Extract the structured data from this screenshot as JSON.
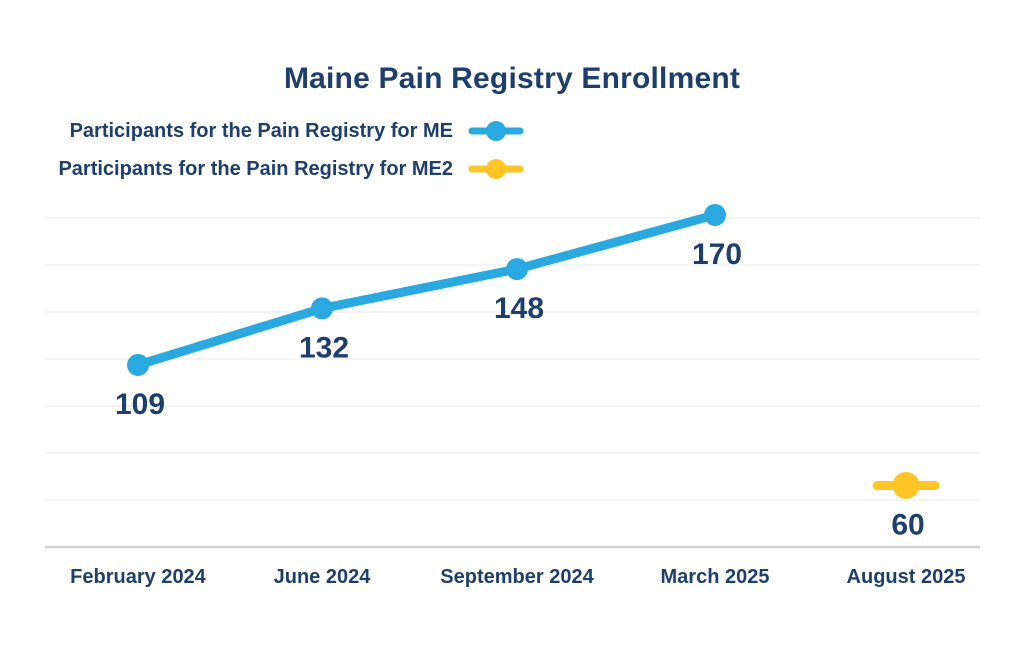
{
  "chart_data": {
    "type": "line",
    "title": "Maine Pain Registry Enrollment",
    "categories": [
      "February 2024",
      "June 2024",
      "September 2024",
      "March 2025",
      "August 2025"
    ],
    "series": [
      {
        "name": "Participants for the Pain Registry for ME",
        "color": "#29A9E0",
        "values": [
          109,
          132,
          148,
          170,
          null
        ]
      },
      {
        "name": "Participants for the Pain Registry for ME2",
        "color": "#FFC425",
        "values": [
          null,
          null,
          null,
          null,
          60
        ]
      }
    ],
    "data_labels": true,
    "colors": {
      "text_navy": "#1E3E6E",
      "gridline": "#F1F1F1",
      "axis_line": "#D2D2D2",
      "background": "#FFFFFF"
    },
    "legend_position": "top-left",
    "grid": "horizontal-lines",
    "x_axis_line": true,
    "y_axis_labels": false,
    "ylim": [
      35,
      180
    ]
  }
}
